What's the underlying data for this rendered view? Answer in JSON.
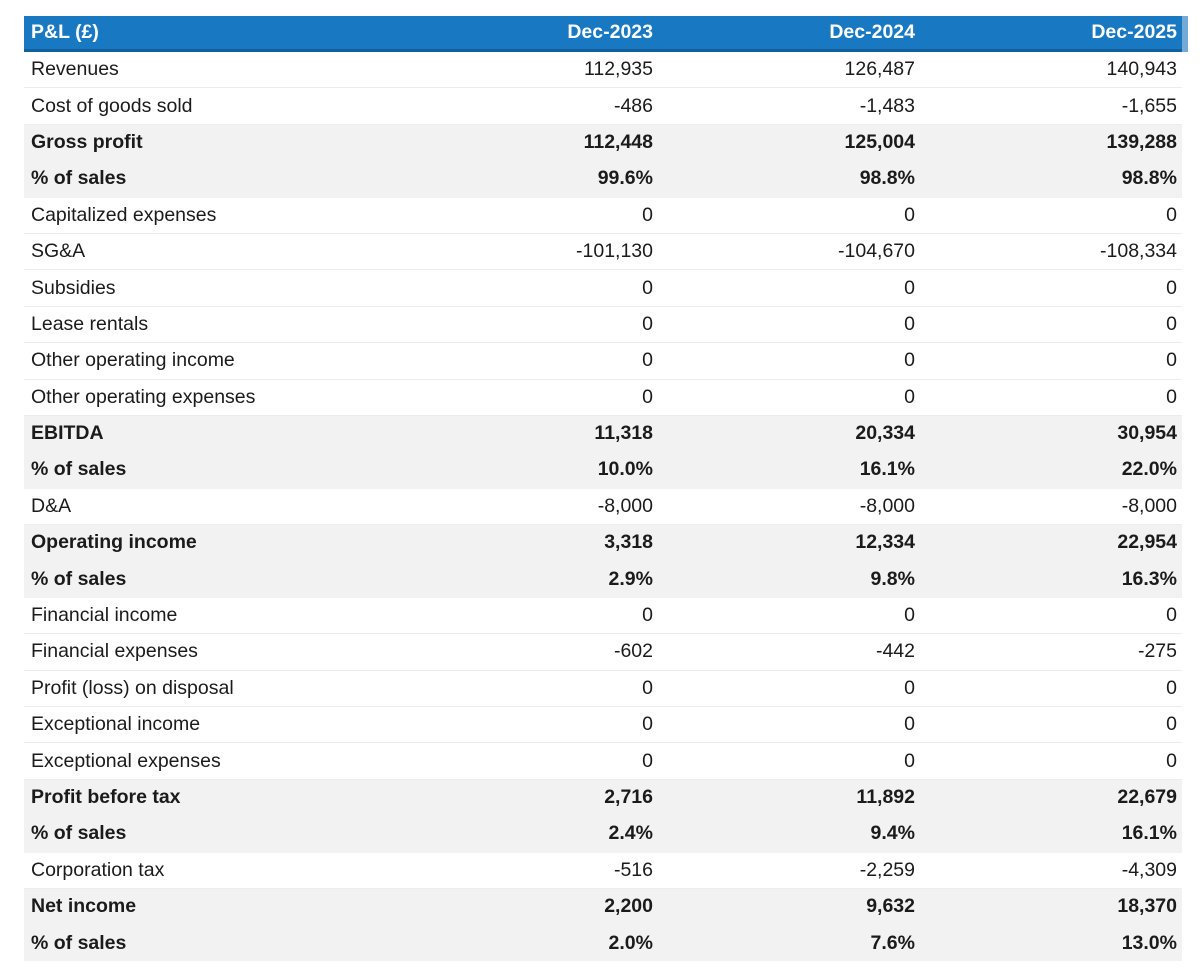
{
  "table": {
    "title": "P&L (£)",
    "columns": [
      "Dec-2023",
      "Dec-2024",
      "Dec-2025"
    ],
    "rows": [
      {
        "label": "Revenues",
        "values": [
          "112,935",
          "126,487",
          "140,943"
        ],
        "emphasis": false
      },
      {
        "label": "Cost of goods sold",
        "values": [
          "-486",
          "-1,483",
          "-1,655"
        ],
        "emphasis": false
      },
      {
        "label": "Gross profit",
        "values": [
          "112,448",
          "125,004",
          "139,288"
        ],
        "emphasis": true
      },
      {
        "label": "% of sales",
        "values": [
          "99.6%",
          "98.8%",
          "98.8%"
        ],
        "emphasis": true
      },
      {
        "label": "Capitalized expenses",
        "values": [
          "0",
          "0",
          "0"
        ],
        "emphasis": false
      },
      {
        "label": "SG&A",
        "values": [
          "-101,130",
          "-104,670",
          "-108,334"
        ],
        "emphasis": false
      },
      {
        "label": "Subsidies",
        "values": [
          "0",
          "0",
          "0"
        ],
        "emphasis": false
      },
      {
        "label": "Lease rentals",
        "values": [
          "0",
          "0",
          "0"
        ],
        "emphasis": false
      },
      {
        "label": "Other operating income",
        "values": [
          "0",
          "0",
          "0"
        ],
        "emphasis": false
      },
      {
        "label": "Other operating expenses",
        "values": [
          "0",
          "0",
          "0"
        ],
        "emphasis": false
      },
      {
        "label": "EBITDA",
        "values": [
          "11,318",
          "20,334",
          "30,954"
        ],
        "emphasis": true
      },
      {
        "label": "% of sales",
        "values": [
          "10.0%",
          "16.1%",
          "22.0%"
        ],
        "emphasis": true
      },
      {
        "label": "D&A",
        "values": [
          "-8,000",
          "-8,000",
          "-8,000"
        ],
        "emphasis": false
      },
      {
        "label": "Operating income",
        "values": [
          "3,318",
          "12,334",
          "22,954"
        ],
        "emphasis": true
      },
      {
        "label": "% of sales",
        "values": [
          "2.9%",
          "9.8%",
          "16.3%"
        ],
        "emphasis": true
      },
      {
        "label": "Financial income",
        "values": [
          "0",
          "0",
          "0"
        ],
        "emphasis": false
      },
      {
        "label": "Financial expenses",
        "values": [
          "-602",
          "-442",
          "-275"
        ],
        "emphasis": false
      },
      {
        "label": "Profit (loss) on disposal",
        "values": [
          "0",
          "0",
          "0"
        ],
        "emphasis": false
      },
      {
        "label": "Exceptional income",
        "values": [
          "0",
          "0",
          "0"
        ],
        "emphasis": false
      },
      {
        "label": "Exceptional expenses",
        "values": [
          "0",
          "0",
          "0"
        ],
        "emphasis": false
      },
      {
        "label": "Profit before tax",
        "values": [
          "2,716",
          "11,892",
          "22,679"
        ],
        "emphasis": true
      },
      {
        "label": "% of sales",
        "values": [
          "2.4%",
          "9.4%",
          "16.1%"
        ],
        "emphasis": true
      },
      {
        "label": "Corporation tax",
        "values": [
          "-516",
          "-2,259",
          "-4,309"
        ],
        "emphasis": false
      },
      {
        "label": "Net income",
        "values": [
          "2,200",
          "9,632",
          "18,370"
        ],
        "emphasis": true
      },
      {
        "label": "% of sales",
        "values": [
          "2.0%",
          "7.6%",
          "13.0%"
        ],
        "emphasis": true
      }
    ],
    "colors": {
      "header_bg": "#1878c2",
      "header_border": "#11619e",
      "header_accent": "#74abd6",
      "row_shaded": "#f2f2f2",
      "text": "#1b1b1b"
    }
  }
}
